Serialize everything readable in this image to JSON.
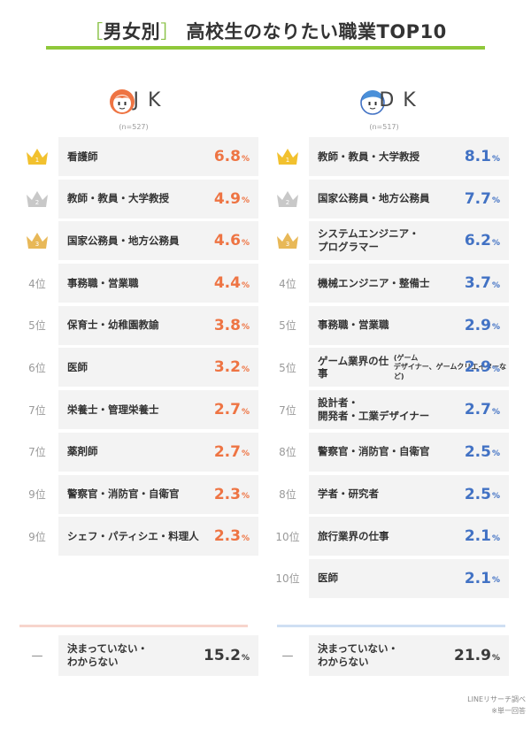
{
  "title": {
    "bracket_open": "［",
    "tag": "男女別",
    "bracket_close": "］",
    "main": "高校生のなりたい職業TOP10"
  },
  "colors": {
    "accent_green": "#8fc83a",
    "jk_orange": "#ee7443",
    "dk_blue": "#4272c4",
    "gold": "#f2c12e",
    "silver": "#c8c8c8",
    "bronze": "#e8b858",
    "row_bg": "#f3f3f3"
  },
  "chart_data": [
    {
      "type": "table",
      "group": "JK",
      "n_label": "(n=527)",
      "unit": "%",
      "rows": [
        {
          "rank": "1",
          "medal": "gold",
          "job": "看護師",
          "value": 6.8
        },
        {
          "rank": "2",
          "medal": "silver",
          "job": "教師・教員・大学教授",
          "value": 4.9
        },
        {
          "rank": "3",
          "medal": "bronze",
          "job": "国家公務員・地方公務員",
          "value": 4.6
        },
        {
          "rank": "4位",
          "medal": "",
          "job": "事務職・営業職",
          "value": 4.4
        },
        {
          "rank": "5位",
          "medal": "",
          "job": "保育士・幼稚園教諭",
          "value": 3.8
        },
        {
          "rank": "6位",
          "medal": "",
          "job": "医師",
          "value": 3.2
        },
        {
          "rank": "7位",
          "medal": "",
          "job": "栄養士・管理栄養士",
          "value": 2.7
        },
        {
          "rank": "7位",
          "medal": "",
          "job": "薬剤師",
          "value": 2.7
        },
        {
          "rank": "9位",
          "medal": "",
          "job": "警察官・消防官・自衛官",
          "value": 2.3
        },
        {
          "rank": "9位",
          "medal": "",
          "job": "シェフ・パティシエ・料理人",
          "value": 2.3
        }
      ],
      "undecided": {
        "rank": "—",
        "job": "決まっていない・\nわからない",
        "value": 15.2
      }
    },
    {
      "type": "table",
      "group": "DK",
      "n_label": "(n=517)",
      "unit": "%",
      "rows": [
        {
          "rank": "1",
          "medal": "gold",
          "job": "教師・教員・大学教授",
          "value": 8.1
        },
        {
          "rank": "2",
          "medal": "silver",
          "job": "国家公務員・地方公務員",
          "value": 7.7
        },
        {
          "rank": "3",
          "medal": "bronze",
          "job": "システムエンジニア・\nプログラマー",
          "value": 6.2
        },
        {
          "rank": "4位",
          "medal": "",
          "job": "機械エンジニア・整備士",
          "value": 3.7
        },
        {
          "rank": "5位",
          "medal": "",
          "job": "事務職・営業職",
          "value": 2.9
        },
        {
          "rank": "5位",
          "medal": "",
          "job": "ゲーム業界の仕事",
          "job_sub": "(ゲーム\nデザイナー、ゲームクリエイターなど)",
          "value": 2.9
        },
        {
          "rank": "7位",
          "medal": "",
          "job": "設計者・\n開発者・工業デザイナー",
          "value": 2.7
        },
        {
          "rank": "8位",
          "medal": "",
          "job": "警察官・消防官・自衛官",
          "value": 2.5
        },
        {
          "rank": "8位",
          "medal": "",
          "job": "学者・研究者",
          "value": 2.5
        },
        {
          "rank": "10位",
          "medal": "",
          "job": "旅行業界の仕事",
          "value": 2.1
        },
        {
          "rank": "10位",
          "medal": "",
          "job": "医師",
          "value": 2.1
        }
      ],
      "undecided": {
        "rank": "—",
        "job": "決まっていない・\nわからない",
        "value": 21.9
      }
    }
  ],
  "source": {
    "line1": "LINEリサーチ調べ",
    "line2": "※単一回答"
  }
}
